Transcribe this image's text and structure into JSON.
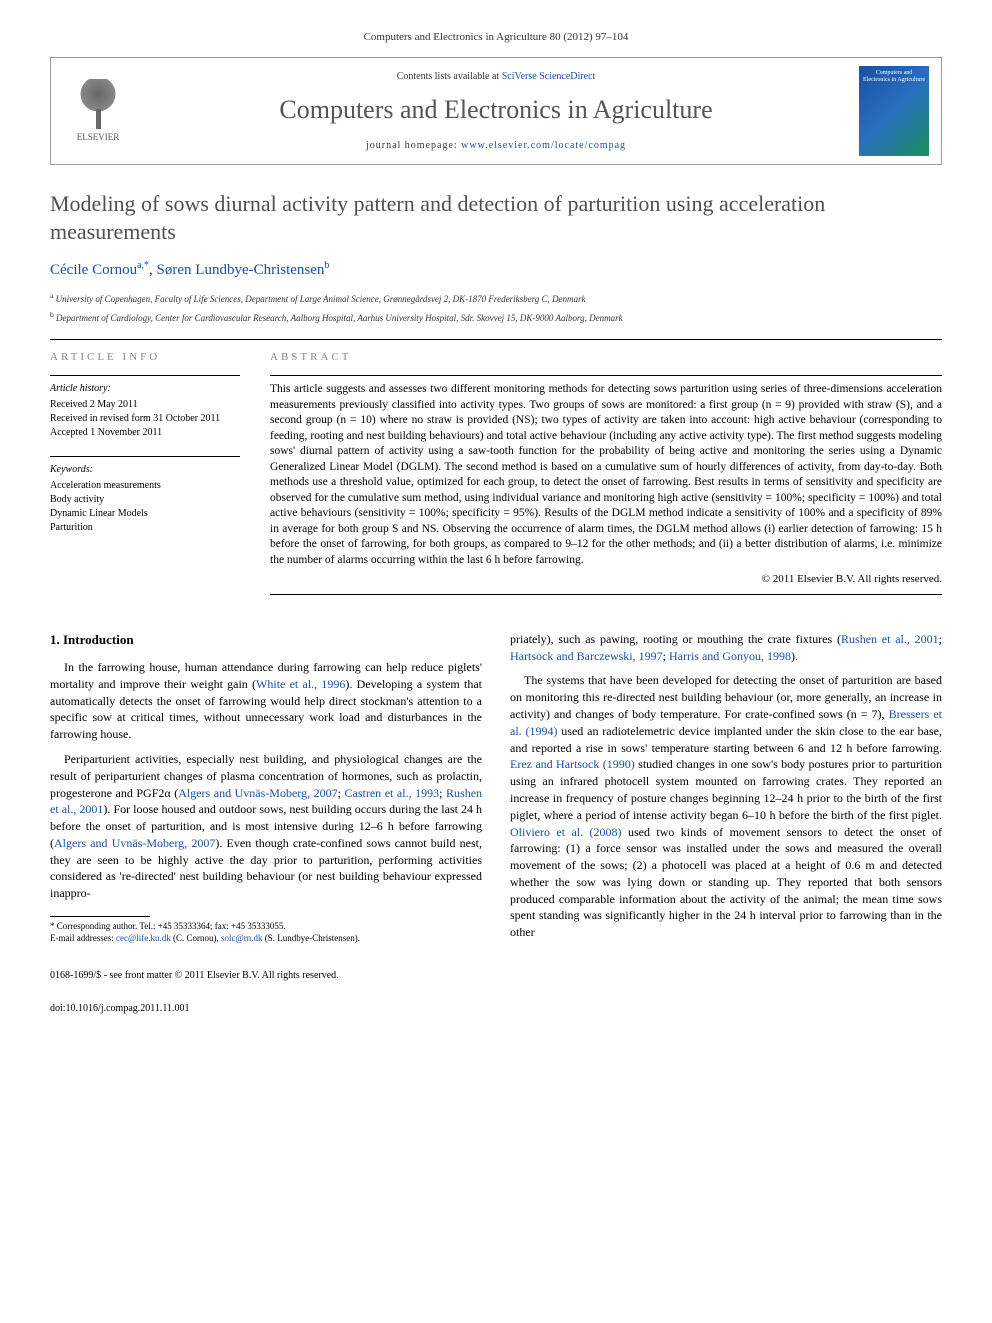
{
  "journal_ref": "Computers and Electronics in Agriculture 80 (2012) 97–104",
  "header": {
    "contents_prefix": "Contents lists available at ",
    "contents_link": "SciVerse ScienceDirect",
    "journal_title": "Computers and Electronics in Agriculture",
    "homepage_prefix": "journal homepage: ",
    "homepage_link": "www.elsevier.com/locate/compag",
    "publisher": "ELSEVIER"
  },
  "paper": {
    "title": "Modeling of sows diurnal activity pattern and detection of parturition using acceleration measurements",
    "authors_html": "Cécile Cornou",
    "author1": "Cécile Cornou",
    "author1_sup": "a,*",
    "author2": "Søren Lundbye-Christensen",
    "author2_sup": "b",
    "affil_a": "University of Copenhagen, Faculty of Life Sciences, Department of Large Animal Science, Grønnegårdsvej 2, DK-1870 Frederiksberg C, Denmark",
    "affil_b": "Department of Cardiology, Center for Cardiovascular Research, Aalborg Hospital, Aarhus University Hospital, Sdr. Skovvej 15, DK-9000 Aalborg, Denmark"
  },
  "info": {
    "heading": "ARTICLE INFO",
    "history_label": "Article history:",
    "received": "Received 2 May 2011",
    "revised": "Received in revised form 31 October 2011",
    "accepted": "Accepted 1 November 2011",
    "keywords_label": "Keywords:",
    "keywords": [
      "Acceleration measurements",
      "Body activity",
      "Dynamic Linear Models",
      "Parturition"
    ]
  },
  "abstract": {
    "heading": "ABSTRACT",
    "text": "This article suggests and assesses two different monitoring methods for detecting sows parturition using series of three-dimensions acceleration measurements previously classified into activity types. Two groups of sows are monitored: a first group (n = 9) provided with straw (S), and a second group (n = 10) where no straw is provided (NS); two types of activity are taken into account: high active behaviour (corresponding to feeding, rooting and nest building behaviours) and total active behaviour (including any active activity type). The first method suggests modeling sows' diurnal pattern of activity using a saw-tooth function for the probability of being active and monitoring the series using a Dynamic Generalized Linear Model (DGLM). The second method is based on a cumulative sum of hourly differences of activity, from day-to-day. Both methods use a threshold value, optimized for each group, to detect the onset of farrowing. Best results in terms of sensitivity and specificity are observed for the cumulative sum method, using individual variance and monitoring high active (sensitivity = 100%; specificity = 100%) and total active behaviours (sensitivity = 100%; specificity = 95%). Results of the DGLM method indicate a sensitivity of 100% and a specificity of 89% in average for both group S and NS. Observing the occurrence of alarm times, the DGLM method allows (i) earlier detection of farrowing: 15 h before the onset of farrowing, for both groups, as compared to 9–12 for the other methods; and (ii) a better distribution of alarms, i.e. minimize the number of alarms occurring within the last 6 h before farrowing.",
    "copyright": "© 2011 Elsevier B.V. All rights reserved."
  },
  "body": {
    "section_heading": "1. Introduction",
    "col1": {
      "p1_pre": "In the farrowing house, human attendance during farrowing can help reduce piglets' mortality and improve their weight gain (",
      "p1_ref1": "White et al., 1996",
      "p1_post": "). Developing a system that automatically detects the onset of farrowing would help direct stockman's attention to a specific sow at critical times, without unnecessary work load and disturbances in the farrowing house.",
      "p2_pre": "Periparturient activities, especially nest building, and physiological changes are the result of periparturient changes of plasma concentration of hormones, such as prolactin, progesterone and PGF2α (",
      "p2_ref1": "Algers and Uvnäs-Moberg, 2007",
      "p2_sep1": "; ",
      "p2_ref2": "Castren et al., 1993",
      "p2_sep2": "; ",
      "p2_ref3": "Rushen et al., 2001",
      "p2_mid": "). For loose housed and outdoor sows, nest building occurs during the last 24 h before the onset of parturition, and is most intensive during 12–6 h before farrowing (",
      "p2_ref4": "Algers and Uvnäs-Moberg, 2007",
      "p2_post": "). Even though crate-confined sows cannot build nest, they are seen to be highly active the day prior to parturition, performing activities considered as 're-directed' nest building behaviour (or nest building behaviour expressed inappro-"
    },
    "col2": {
      "p1_pre": "priately), such as pawing, rooting or mouthing the crate fixtures (",
      "p1_ref1": "Rushen et al., 2001",
      "p1_sep1": "; ",
      "p1_ref2": "Hartsock and Barczewski, 1997",
      "p1_sep2": "; ",
      "p1_ref3": "Harris and Gonyou, 1998",
      "p1_post": ").",
      "p2_pre": "The systems that have been developed for detecting the onset of parturition are based on monitoring this re-directed nest building behaviour (or, more generally, an increase in activity) and changes of body temperature. For crate-confined sows (n = 7), ",
      "p2_ref1": "Bressers et al. (1994)",
      "p2_mid1": " used an radiotelemetric device implanted under the skin close to the ear base, and reported a rise in sows' temperature starting between 6 and 12 h before farrowing. ",
      "p2_ref2": "Erez and Hartsock (1990)",
      "p2_mid2": " studied changes in one sow's body postures prior to parturition using an infrared photocell system mounted on farrowing crates. They reported an increase in frequency of posture changes beginning 12–24 h prior to the birth of the first piglet, where a period of intense activity began 6–10 h before the birth of the first piglet. ",
      "p2_ref3": "Oliviero et al. (2008)",
      "p2_post": " used two kinds of movement sensors to detect the onset of farrowing: (1) a force sensor was installed under the sows and measured the overall movement of the sows; (2) a photocell was placed at a height of 0.6 m and detected whether the sow was lying down or standing up. They reported that both sensors produced comparable information about the activity of the animal; the mean time sows spent standing was significantly higher in the 24 h interval prior to farrowing than in the other"
    }
  },
  "footnote": {
    "corresp": "* Corresponding author. Tel.: +45 35333364; fax: +45 35333055.",
    "emails_label": "E-mail addresses: ",
    "email1": "cec@life.ku.dk",
    "email1_who": " (C. Cornou), ",
    "email2": "solc@rn.dk",
    "email2_who": " (S. Lundbye-Christensen)."
  },
  "footer": {
    "line1": "0168-1699/$ - see front matter © 2011 Elsevier B.V. All rights reserved.",
    "line2": "doi:10.1016/j.compag.2011.11.001"
  }
}
